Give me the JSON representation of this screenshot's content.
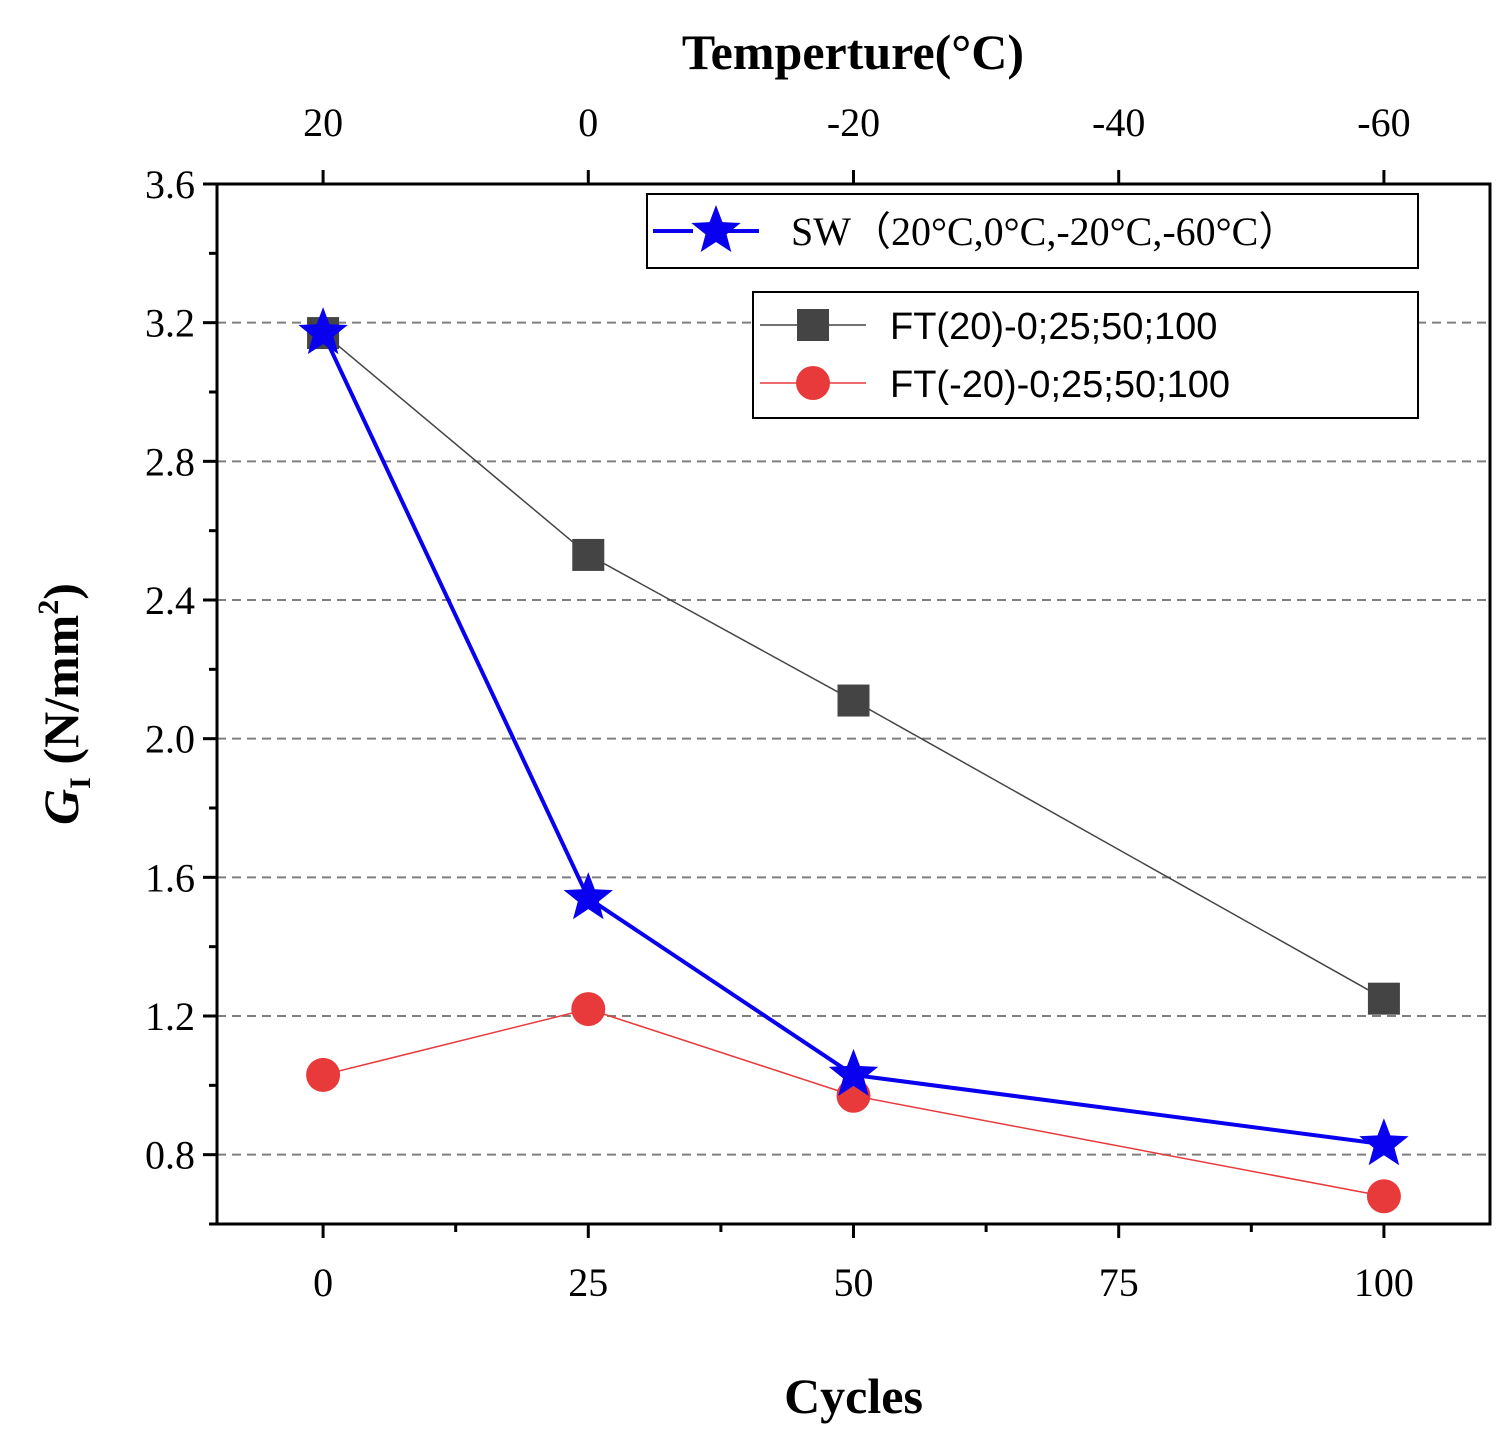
{
  "chart_data": {
    "type": "line",
    "xlabel": "Cycles",
    "x2label": "Temperture(°C)",
    "ylabel_symbol": "G",
    "ylabel_sub": "I",
    "ylabel_unit_open": " (N/mm",
    "ylabel_sup": "2",
    "ylabel_unit_close": ")",
    "xlim": [
      -10,
      110
    ],
    "ylim": [
      0.6,
      3.6
    ],
    "xticks": [
      0,
      25,
      50,
      75,
      100
    ],
    "xtick_labels": [
      "0",
      "25",
      "50",
      "75",
      "100"
    ],
    "x2ticks": [
      0,
      25,
      50,
      75,
      100
    ],
    "x2tick_labels": [
      "20",
      "0",
      "-20",
      "-40",
      "-60"
    ],
    "yticks": [
      0.8,
      1.2,
      1.6,
      2.0,
      2.4,
      2.8,
      3.2,
      3.6
    ],
    "ytick_labels": [
      "0.8",
      "1.2",
      "1.6",
      "2.0",
      "2.4",
      "2.8",
      "3.2",
      "3.6"
    ],
    "grid": "horizontal dashed",
    "series": [
      {
        "name": "SW（20°C,0°C,-20°C,-60°C）",
        "marker": "star",
        "color": "#0a00f0",
        "x": [
          0,
          25,
          50,
          100
        ],
        "values": [
          3.17,
          1.54,
          1.03,
          0.83
        ]
      },
      {
        "name": "FT(20)-0;25;50;100",
        "marker": "square",
        "color": "#444444",
        "x": [
          0,
          25,
          50,
          100
        ],
        "values": [
          3.17,
          2.53,
          2.11,
          1.25
        ]
      },
      {
        "name": "FT(-20)-0;25;50;100",
        "marker": "circle",
        "color": "#e83a3a",
        "x": [
          0,
          25,
          50,
          100
        ],
        "values": [
          1.03,
          1.22,
          0.97,
          0.68
        ]
      }
    ]
  }
}
